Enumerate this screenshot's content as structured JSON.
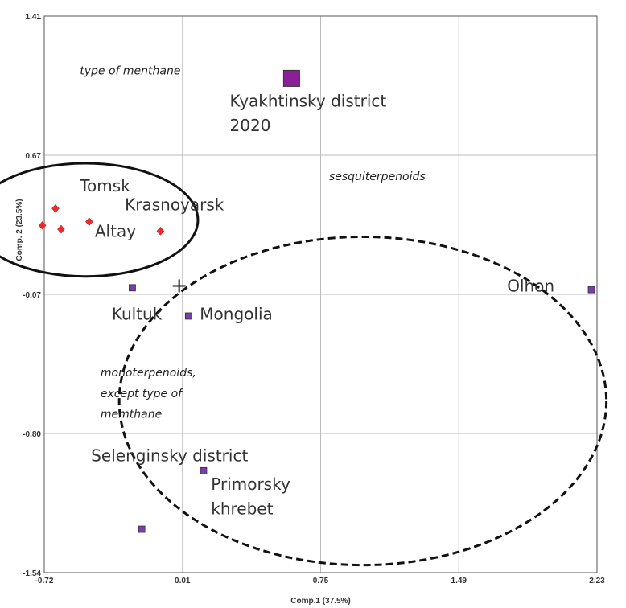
{
  "chart_data": {
    "type": "scatter",
    "xlabel": "Comp.1 (37.5%)",
    "ylabel": "Comp. 2 (23.5%)",
    "xlim": [
      -0.72,
      2.23
    ],
    "ylim": [
      -1.54,
      1.41
    ],
    "x_ticks": [
      "-0.72",
      "0.01",
      "0.75",
      "1.49",
      "2.23"
    ],
    "y_ticks": [
      "1.41",
      "0.67",
      "-0.07",
      "-0.80",
      "-1.54"
    ],
    "grid": true,
    "origin_marker": {
      "x": 0.0,
      "y": -0.02
    },
    "colors": {
      "red_group": "#ee2b2b",
      "purple_group": "#7a3fa6",
      "large_square": "#8b1f99"
    },
    "series": [
      {
        "marker": "diamond",
        "color": "#ee2b2b",
        "points": [
          {
            "x": -0.66,
            "y": 0.39
          },
          {
            "x": -0.73,
            "y": 0.3
          },
          {
            "x": -0.63,
            "y": 0.28
          },
          {
            "x": -0.48,
            "y": 0.32
          },
          {
            "x": -0.1,
            "y": 0.27
          }
        ]
      },
      {
        "marker": "square",
        "color": "#7a3fa6",
        "points": [
          {
            "x": -0.25,
            "y": -0.03
          },
          {
            "x": 0.05,
            "y": -0.18
          },
          {
            "x": 2.2,
            "y": -0.04
          },
          {
            "x": 0.13,
            "y": -1.0
          },
          {
            "x": -0.2,
            "y": -1.31
          }
        ]
      },
      {
        "marker": "large-square",
        "color": "#8b1f99",
        "points": [
          {
            "x": 0.6,
            "y": 1.08
          }
        ]
      }
    ],
    "point_labels": [
      {
        "text": "Tomsk",
        "x": -0.53,
        "y": 0.48
      },
      {
        "text": "Krasnoyarsk",
        "x": -0.29,
        "y": 0.38
      },
      {
        "text": "Altay",
        "x": -0.45,
        "y": 0.24
      },
      {
        "text": "Kultuk",
        "x": -0.36,
        "y": -0.2
      },
      {
        "text": "Mongolia",
        "x": 0.11,
        "y": -0.2
      },
      {
        "text": "Olhon",
        "x": 1.75,
        "y": -0.05
      },
      {
        "text": "Kyakhtinsky district",
        "x": 0.27,
        "y": 0.93
      },
      {
        "text": "2020",
        "x": 0.27,
        "y": 0.8
      },
      {
        "text": "Selenginsky district",
        "x": -0.47,
        "y": -0.95
      },
      {
        "text": "Primorsky",
        "x": 0.17,
        "y": -1.1
      },
      {
        "text": "khrebet",
        "x": 0.17,
        "y": -1.23
      }
    ],
    "annotations": [
      {
        "text": "type of menthane",
        "x": -0.53,
        "y": 1.1
      },
      {
        "text": "sesquiterpenoids",
        "x": 0.8,
        "y": 0.54
      },
      {
        "text": "monoterpenoids,",
        "x": -0.42,
        "y": -0.5
      },
      {
        "text": "except type of",
        "x": -0.42,
        "y": -0.61
      },
      {
        "text": "memthane",
        "x": -0.42,
        "y": -0.72
      }
    ],
    "shapes": [
      {
        "kind": "ellipse",
        "style": "solid",
        "cx": -0.5,
        "cy": 0.33,
        "rx": 0.6,
        "ry": 0.3
      },
      {
        "kind": "ellipse",
        "style": "dashed",
        "cx": 0.98,
        "cy": -0.63,
        "rx": 1.3,
        "ry": 0.87
      }
    ]
  }
}
